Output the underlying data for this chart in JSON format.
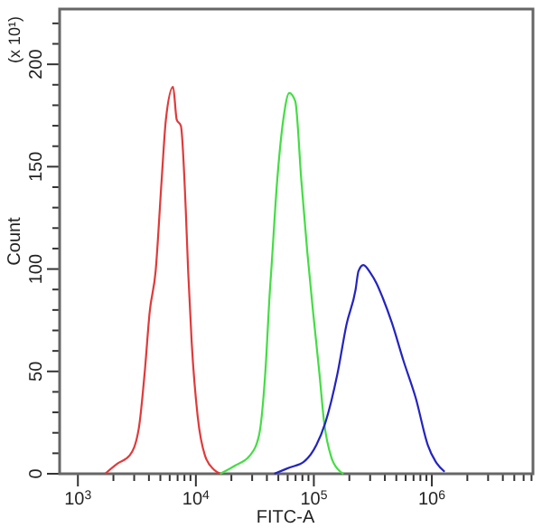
{
  "chart_data": {
    "type": "line",
    "xlabel": "FITC-A",
    "ylabel": "Count",
    "annotations": [
      "(x 10¹)"
    ],
    "log": "x",
    "xlim": [
      700,
      7200000
    ],
    "xticks": [
      {
        "value": 1000,
        "label": "10$^{3}$"
      },
      {
        "value": 2000,
        "label": null
      },
      {
        "value": 3000,
        "label": null
      },
      {
        "value": 4000,
        "label": null
      },
      {
        "value": 5000,
        "label": null
      },
      {
        "value": 6000,
        "label": null
      },
      {
        "value": 7000,
        "label": null
      },
      {
        "value": 8000,
        "label": null
      },
      {
        "value": 9000,
        "label": null
      },
      {
        "value": 10000,
        "label": "10$^{4}$"
      },
      {
        "value": 20000,
        "label": null
      },
      {
        "value": 30000,
        "label": null
      },
      {
        "value": 40000,
        "label": null
      },
      {
        "value": 50000,
        "label": null
      },
      {
        "value": 60000,
        "label": null
      },
      {
        "value": 70000,
        "label": null
      },
      {
        "value": 80000,
        "label": null
      },
      {
        "value": 90000,
        "label": null
      },
      {
        "value": 100000,
        "label": "10$^{5}$"
      },
      {
        "value": 200000,
        "label": null
      },
      {
        "value": 300000,
        "label": null
      },
      {
        "value": 400000,
        "label": null
      },
      {
        "value": 500000,
        "label": null
      },
      {
        "value": 600000,
        "label": null
      },
      {
        "value": 700000,
        "label": null
      },
      {
        "value": 800000,
        "label": null
      },
      {
        "value": 900000,
        "label": null
      },
      {
        "value": 1000000,
        "label": "10$^{6}$"
      },
      {
        "value": 2000000,
        "label": null
      },
      {
        "value": 3000000,
        "label": null
      },
      {
        "value": 4000000,
        "label": null
      },
      {
        "value": 5000000,
        "label": null
      },
      {
        "value": 6000000,
        "label": null
      },
      {
        "value": 7000000,
        "label": null
      }
    ],
    "ylim": [
      0,
      227
    ],
    "yticks": [
      0,
      {
        "value": 10,
        "label": null
      },
      {
        "value": 20,
        "label": null
      },
      {
        "value": 30,
        "label": null
      },
      {
        "value": 40,
        "label": null
      },
      50,
      {
        "value": 60,
        "label": null
      },
      {
        "value": 70,
        "label": null
      },
      {
        "value": 80,
        "label": null
      },
      {
        "value": 90,
        "label": null
      },
      100,
      {
        "value": 110,
        "label": null
      },
      {
        "value": 120,
        "label": null
      },
      {
        "value": 130,
        "label": null
      },
      {
        "value": 140,
        "label": null
      },
      150,
      {
        "value": 160,
        "label": null
      },
      {
        "value": 170,
        "label": null
      },
      {
        "value": 180,
        "label": null
      },
      {
        "value": 190,
        "label": null
      },
      200,
      {
        "value": 210,
        "label": null
      },
      {
        "value": 220,
        "label": null
      }
    ],
    "series": [
      {
        "color": "#e03a3a",
        "x": [
          1700,
          2170,
          2750,
          3280,
          3690,
          4060,
          4560,
          5120,
          5570,
          6410,
          6880,
          7460,
          8210,
          8600,
          9220,
          10360,
          11930,
          14230,
          16210
        ],
        "values": [
          0,
          5,
          9,
          22,
          50,
          79,
          99,
          143,
          173,
          189,
          173,
          170,
          129,
          99,
          64,
          28,
          9,
          2,
          0
        ]
      },
      {
        "color": "#44dd44",
        "x": [
          16040,
          21490,
          28800,
          34360,
          38730,
          42460,
          43520,
          48870,
          55080,
          61900,
          69550,
          78400,
          88100,
          98950,
          111500,
          122300,
          140800,
          168000,
          178300
        ],
        "values": [
          0,
          4,
          9,
          19,
          49,
          90,
          99,
          143,
          173,
          186,
          182,
          143,
          108,
          78,
          49,
          25,
          8,
          1,
          0
        ]
      },
      {
        "color": "#2424c0",
        "x": [
          46200,
          61900,
          82900,
          105000,
          125300,
          158700,
          189300,
          225900,
          238900,
          262800,
          302600,
          340000,
          383200,
          457100,
          576800,
          730800,
          925000,
          1104000,
          1284000
        ],
        "values": [
          0,
          3,
          6,
          14,
          25,
          49,
          73,
          90,
          99,
          102,
          98,
          93,
          86,
          74,
          55,
          37,
          14,
          5,
          1
        ]
      }
    ]
  }
}
